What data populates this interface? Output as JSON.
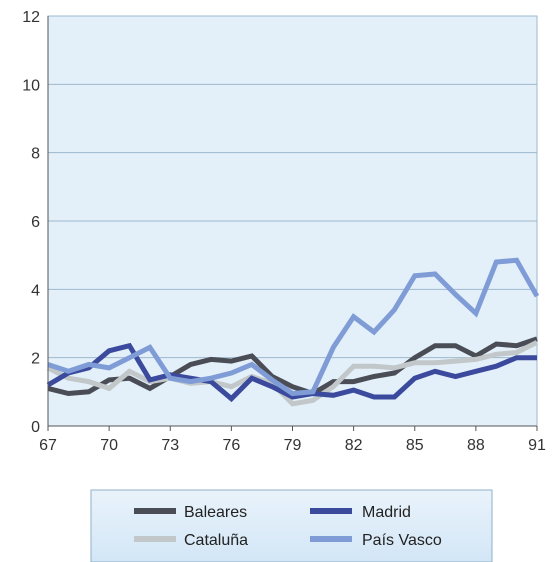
{
  "chart_data": {
    "type": "line",
    "title": "",
    "xlabel": "",
    "ylabel": "",
    "x": [
      67,
      68,
      69,
      70,
      71,
      72,
      73,
      74,
      75,
      76,
      77,
      78,
      79,
      80,
      81,
      82,
      83,
      84,
      85,
      86,
      87,
      88,
      89,
      90,
      91
    ],
    "x_ticks": [
      "67",
      "70",
      "73",
      "76",
      "79",
      "82",
      "85",
      "88",
      "91"
    ],
    "y_ticks": [
      "0",
      "2",
      "4",
      "6",
      "8",
      "10",
      "12"
    ],
    "xlim": [
      67,
      91
    ],
    "ylim": [
      0,
      12
    ],
    "grid": "horizontal",
    "legend_position": "bottom",
    "plot_background": "#e3f0fa",
    "series": [
      {
        "name": "Baleares",
        "color": "#4a4d55",
        "values": [
          1.1,
          0.95,
          1.0,
          1.35,
          1.4,
          1.1,
          1.45,
          1.8,
          1.95,
          1.9,
          2.05,
          1.45,
          1.15,
          0.95,
          1.3,
          1.3,
          1.45,
          1.55,
          2.0,
          2.35,
          2.35,
          2.05,
          2.4,
          2.35,
          2.55
        ]
      },
      {
        "name": "Cataluña",
        "color": "#c2c7c9",
        "values": [
          1.7,
          1.4,
          1.3,
          1.1,
          1.6,
          1.3,
          1.4,
          1.25,
          1.3,
          1.15,
          1.45,
          1.25,
          0.65,
          0.75,
          1.15,
          1.75,
          1.75,
          1.7,
          1.85,
          1.85,
          1.9,
          1.95,
          2.1,
          2.15,
          2.45
        ]
      },
      {
        "name": "Madrid",
        "color": "#3b4a9c",
        "values": [
          1.2,
          1.55,
          1.7,
          2.2,
          2.35,
          1.35,
          1.5,
          1.4,
          1.3,
          0.8,
          1.4,
          1.15,
          0.85,
          0.95,
          0.9,
          1.05,
          0.85,
          0.85,
          1.4,
          1.6,
          1.45,
          1.6,
          1.75,
          2.0,
          2.0
        ]
      },
      {
        "name": "País Vasco",
        "color": "#7f9cd6",
        "values": [
          1.8,
          1.6,
          1.8,
          1.7,
          2.0,
          2.3,
          1.4,
          1.3,
          1.4,
          1.55,
          1.8,
          1.35,
          0.95,
          1.0,
          2.3,
          3.2,
          2.75,
          3.4,
          4.4,
          4.45,
          3.85,
          3.3,
          4.8,
          4.85,
          3.8
        ]
      }
    ]
  }
}
